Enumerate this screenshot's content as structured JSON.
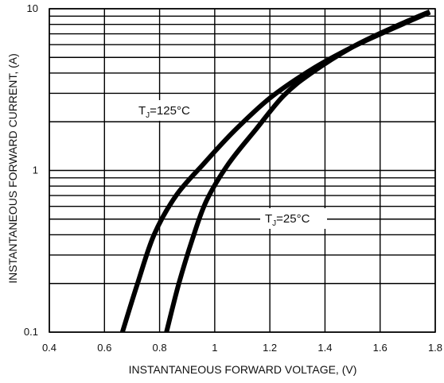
{
  "chart_data": {
    "type": "line",
    "title": "",
    "xlabel": "INSTANTANEOUS FORWARD VOLTAGE, (V)",
    "ylabel": "INSTANTANEOUS FORWARD CURRENT, (A)",
    "xlim": [
      0.4,
      1.8
    ],
    "ylim": [
      0.1,
      10
    ],
    "yscale": "log",
    "grid": true,
    "x_ticks": [
      "0.4",
      "0.6",
      "0.8",
      "1",
      "1.2",
      "1.4",
      "1.6",
      "1.8"
    ],
    "y_ticks": [
      "0.1",
      "1",
      "10"
    ],
    "series": [
      {
        "label_prefix": "T",
        "label_subscript": "J",
        "label_suffix": "=125°C",
        "points": [
          [
            0.665,
            0.1
          ],
          [
            0.72,
            0.2
          ],
          [
            0.78,
            0.4
          ],
          [
            0.86,
            0.7
          ],
          [
            0.96,
            1.1
          ],
          [
            1.07,
            1.75
          ],
          [
            1.2,
            2.8
          ],
          [
            1.35,
            4.2
          ],
          [
            1.5,
            5.8
          ],
          [
            1.65,
            7.6
          ],
          [
            1.78,
            9.5
          ]
        ]
      },
      {
        "label_prefix": "T",
        "label_subscript": "J",
        "label_suffix": "=25°C",
        "points": [
          [
            0.825,
            0.1
          ],
          [
            0.87,
            0.2
          ],
          [
            0.92,
            0.38
          ],
          [
            0.97,
            0.65
          ],
          [
            1.05,
            1.1
          ],
          [
            1.15,
            1.8
          ],
          [
            1.25,
            2.9
          ],
          [
            1.35,
            4.0
          ],
          [
            1.5,
            5.8
          ],
          [
            1.65,
            7.7
          ],
          [
            1.78,
            9.6
          ]
        ]
      }
    ]
  }
}
